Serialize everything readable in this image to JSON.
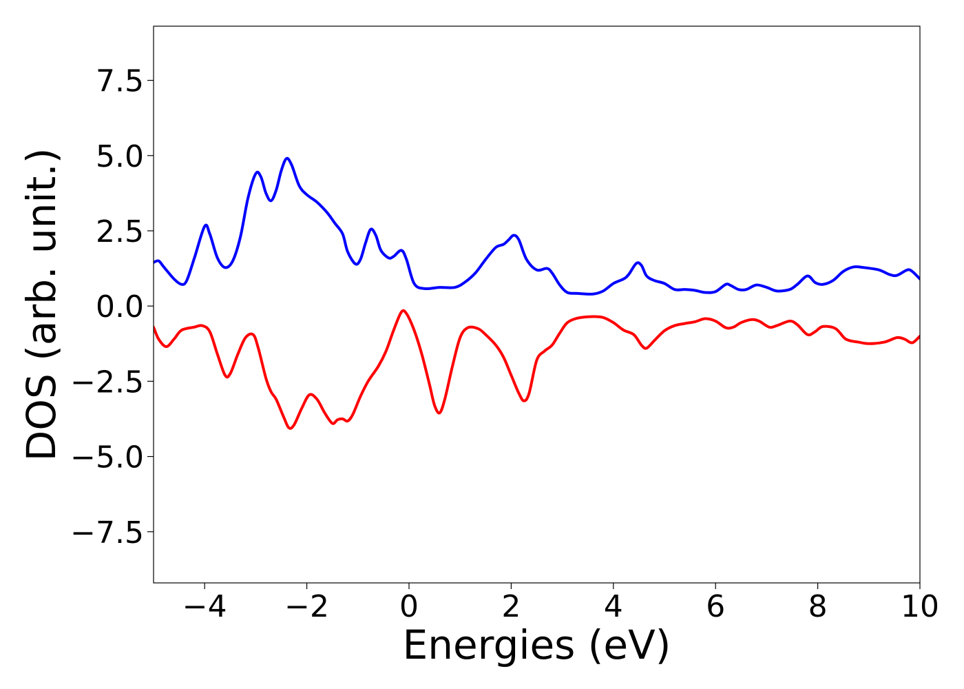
{
  "chart_data": {
    "type": "line",
    "title": "",
    "xlabel": "Energies (eV)",
    "ylabel": "DOS (arb. unit.)",
    "xlim": [
      -5,
      10
    ],
    "ylim": [
      -9.2,
      9.3
    ],
    "grid": false,
    "x_ticks": [
      -4,
      -2,
      0,
      2,
      4,
      6,
      8,
      10
    ],
    "x_tick_labels": [
      "−4",
      "−2",
      "0",
      "2",
      "4",
      "6",
      "8",
      "10"
    ],
    "y_ticks": [
      7.5,
      5.0,
      2.5,
      0.0,
      -2.5,
      -5.0,
      -7.5
    ],
    "y_tick_labels": [
      "7.5",
      "5.0",
      "2.5",
      "0.0",
      "−2.5",
      "−5.0",
      "−7.5"
    ],
    "series": [
      {
        "color": "#0000ff",
        "points": [
          [
            -5.0,
            1.45
          ],
          [
            -4.9,
            1.5
          ],
          [
            -4.8,
            1.3
          ],
          [
            -4.6,
            0.9
          ],
          [
            -4.45,
            0.72
          ],
          [
            -4.35,
            0.85
          ],
          [
            -4.2,
            1.6
          ],
          [
            -4.0,
            2.65
          ],
          [
            -3.9,
            2.4
          ],
          [
            -3.75,
            1.6
          ],
          [
            -3.6,
            1.28
          ],
          [
            -3.45,
            1.5
          ],
          [
            -3.3,
            2.3
          ],
          [
            -3.15,
            3.6
          ],
          [
            -3.0,
            4.4
          ],
          [
            -2.9,
            4.3
          ],
          [
            -2.8,
            3.75
          ],
          [
            -2.7,
            3.5
          ],
          [
            -2.6,
            3.85
          ],
          [
            -2.5,
            4.5
          ],
          [
            -2.4,
            4.9
          ],
          [
            -2.3,
            4.7
          ],
          [
            -2.15,
            4.0
          ],
          [
            -2.0,
            3.7
          ],
          [
            -1.8,
            3.45
          ],
          [
            -1.6,
            3.1
          ],
          [
            -1.45,
            2.75
          ],
          [
            -1.3,
            2.4
          ],
          [
            -1.2,
            1.8
          ],
          [
            -1.05,
            1.4
          ],
          [
            -0.95,
            1.55
          ],
          [
            -0.85,
            2.1
          ],
          [
            -0.75,
            2.55
          ],
          [
            -0.65,
            2.35
          ],
          [
            -0.55,
            1.85
          ],
          [
            -0.4,
            1.6
          ],
          [
            -0.3,
            1.65
          ],
          [
            -0.15,
            1.85
          ],
          [
            -0.05,
            1.55
          ],
          [
            0.1,
            0.75
          ],
          [
            0.3,
            0.58
          ],
          [
            0.6,
            0.62
          ],
          [
            0.9,
            0.62
          ],
          [
            1.1,
            0.8
          ],
          [
            1.3,
            1.1
          ],
          [
            1.5,
            1.55
          ],
          [
            1.7,
            1.95
          ],
          [
            1.85,
            2.05
          ],
          [
            1.95,
            2.2
          ],
          [
            2.05,
            2.35
          ],
          [
            2.15,
            2.2
          ],
          [
            2.3,
            1.55
          ],
          [
            2.5,
            1.2
          ],
          [
            2.7,
            1.25
          ],
          [
            2.8,
            1.1
          ],
          [
            2.95,
            0.7
          ],
          [
            3.1,
            0.45
          ],
          [
            3.3,
            0.42
          ],
          [
            3.6,
            0.4
          ],
          [
            3.8,
            0.5
          ],
          [
            4.0,
            0.75
          ],
          [
            4.2,
            0.9
          ],
          [
            4.3,
            1.05
          ],
          [
            4.45,
            1.42
          ],
          [
            4.55,
            1.35
          ],
          [
            4.65,
            1.0
          ],
          [
            4.8,
            0.85
          ],
          [
            5.0,
            0.75
          ],
          [
            5.2,
            0.55
          ],
          [
            5.4,
            0.55
          ],
          [
            5.6,
            0.52
          ],
          [
            5.8,
            0.45
          ],
          [
            6.0,
            0.48
          ],
          [
            6.2,
            0.72
          ],
          [
            6.3,
            0.68
          ],
          [
            6.45,
            0.55
          ],
          [
            6.6,
            0.55
          ],
          [
            6.8,
            0.7
          ],
          [
            7.0,
            0.62
          ],
          [
            7.2,
            0.5
          ],
          [
            7.45,
            0.55
          ],
          [
            7.6,
            0.72
          ],
          [
            7.8,
            1.0
          ],
          [
            7.95,
            0.78
          ],
          [
            8.1,
            0.72
          ],
          [
            8.3,
            0.85
          ],
          [
            8.5,
            1.15
          ],
          [
            8.7,
            1.3
          ],
          [
            8.9,
            1.28
          ],
          [
            9.2,
            1.2
          ],
          [
            9.4,
            1.05
          ],
          [
            9.55,
            1.02
          ],
          [
            9.75,
            1.2
          ],
          [
            9.85,
            1.15
          ],
          [
            10.0,
            0.9
          ]
        ]
      },
      {
        "color": "#ff0000",
        "points": [
          [
            -5.0,
            -0.7
          ],
          [
            -4.9,
            -1.1
          ],
          [
            -4.75,
            -1.35
          ],
          [
            -4.6,
            -1.1
          ],
          [
            -4.45,
            -0.8
          ],
          [
            -4.2,
            -0.7
          ],
          [
            -4.05,
            -0.65
          ],
          [
            -3.9,
            -0.85
          ],
          [
            -3.75,
            -1.6
          ],
          [
            -3.6,
            -2.3
          ],
          [
            -3.5,
            -2.25
          ],
          [
            -3.35,
            -1.6
          ],
          [
            -3.2,
            -1.05
          ],
          [
            -3.05,
            -0.95
          ],
          [
            -2.95,
            -1.4
          ],
          [
            -2.8,
            -2.4
          ],
          [
            -2.7,
            -2.85
          ],
          [
            -2.6,
            -3.1
          ],
          [
            -2.45,
            -3.7
          ],
          [
            -2.35,
            -4.05
          ],
          [
            -2.25,
            -3.95
          ],
          [
            -2.1,
            -3.4
          ],
          [
            -1.95,
            -2.95
          ],
          [
            -1.8,
            -3.1
          ],
          [
            -1.65,
            -3.55
          ],
          [
            -1.5,
            -3.9
          ],
          [
            -1.4,
            -3.78
          ],
          [
            -1.3,
            -3.75
          ],
          [
            -1.2,
            -3.82
          ],
          [
            -1.1,
            -3.6
          ],
          [
            -0.95,
            -3.0
          ],
          [
            -0.8,
            -2.5
          ],
          [
            -0.6,
            -2.0
          ],
          [
            -0.45,
            -1.5
          ],
          [
            -0.3,
            -0.8
          ],
          [
            -0.15,
            -0.2
          ],
          [
            -0.05,
            -0.25
          ],
          [
            0.1,
            -0.8
          ],
          [
            0.25,
            -1.6
          ],
          [
            0.4,
            -2.6
          ],
          [
            0.5,
            -3.3
          ],
          [
            0.6,
            -3.55
          ],
          [
            0.7,
            -3.1
          ],
          [
            0.85,
            -2.0
          ],
          [
            1.0,
            -1.05
          ],
          [
            1.15,
            -0.72
          ],
          [
            1.35,
            -0.75
          ],
          [
            1.5,
            -0.95
          ],
          [
            1.7,
            -1.3
          ],
          [
            1.85,
            -1.7
          ],
          [
            2.0,
            -2.3
          ],
          [
            2.15,
            -2.9
          ],
          [
            2.25,
            -3.15
          ],
          [
            2.35,
            -2.9
          ],
          [
            2.5,
            -1.8
          ],
          [
            2.65,
            -1.5
          ],
          [
            2.8,
            -1.3
          ],
          [
            2.95,
            -0.9
          ],
          [
            3.1,
            -0.55
          ],
          [
            3.3,
            -0.4
          ],
          [
            3.6,
            -0.35
          ],
          [
            3.8,
            -0.38
          ],
          [
            4.0,
            -0.55
          ],
          [
            4.2,
            -0.8
          ],
          [
            4.4,
            -0.95
          ],
          [
            4.55,
            -1.3
          ],
          [
            4.65,
            -1.4
          ],
          [
            4.8,
            -1.15
          ],
          [
            5.0,
            -0.82
          ],
          [
            5.2,
            -0.65
          ],
          [
            5.4,
            -0.58
          ],
          [
            5.6,
            -0.52
          ],
          [
            5.8,
            -0.42
          ],
          [
            6.0,
            -0.5
          ],
          [
            6.2,
            -0.72
          ],
          [
            6.35,
            -0.7
          ],
          [
            6.5,
            -0.55
          ],
          [
            6.7,
            -0.45
          ],
          [
            6.85,
            -0.5
          ],
          [
            7.05,
            -0.7
          ],
          [
            7.2,
            -0.65
          ],
          [
            7.45,
            -0.5
          ],
          [
            7.6,
            -0.62
          ],
          [
            7.8,
            -0.95
          ],
          [
            7.95,
            -0.85
          ],
          [
            8.1,
            -0.68
          ],
          [
            8.35,
            -0.75
          ],
          [
            8.55,
            -1.1
          ],
          [
            8.8,
            -1.2
          ],
          [
            9.0,
            -1.25
          ],
          [
            9.3,
            -1.2
          ],
          [
            9.55,
            -1.05
          ],
          [
            9.7,
            -1.1
          ],
          [
            9.85,
            -1.22
          ],
          [
            10.0,
            -1.0
          ]
        ]
      }
    ]
  }
}
